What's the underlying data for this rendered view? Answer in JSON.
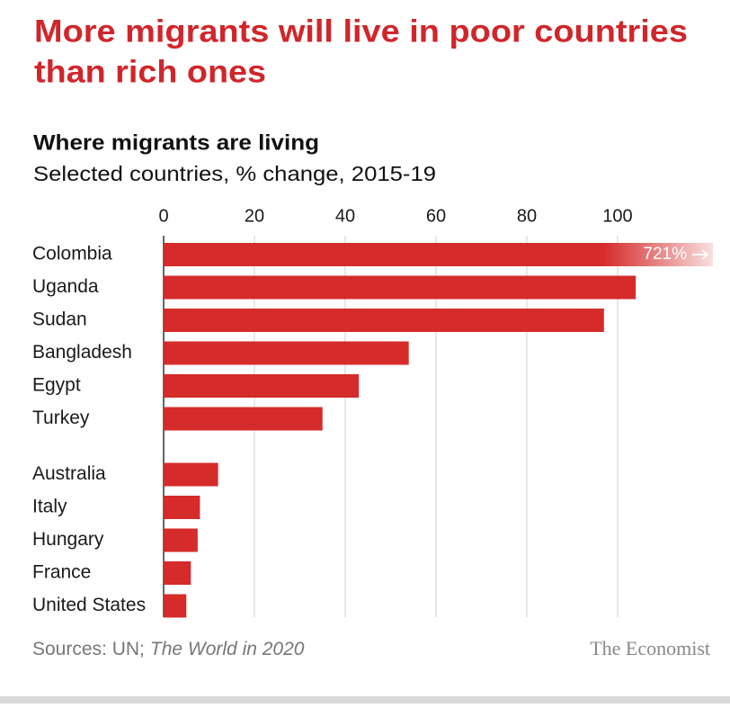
{
  "chart_data": {
    "type": "bar",
    "orientation": "horizontal",
    "title": [
      "More migrants will live in poor countries",
      "than rich ones"
    ],
    "subtitle": "Where migrants are living",
    "axis_note": "Selected countries, % change, 2015-19",
    "categories": [
      "Colombia",
      "Uganda",
      "Sudan",
      "Bangladesh",
      "Egypt",
      "Turkey",
      null,
      "Australia",
      "Italy",
      "Hungary",
      "France",
      "United States"
    ],
    "values": [
      721,
      104,
      97,
      54,
      43,
      35,
      null,
      12,
      8,
      7.5,
      6,
      5
    ],
    "value_labels": [
      "721%",
      null,
      null,
      null,
      null,
      null,
      null,
      null,
      null,
      null,
      null,
      null
    ],
    "color": "#d52b2b",
    "xlim": [
      0,
      121
    ],
    "xticks": [
      0,
      20,
      40,
      60,
      80,
      100
    ],
    "grid": true,
    "source": [
      "Sources: UN;",
      "The World in 2020"
    ],
    "brand": "The Economist"
  }
}
